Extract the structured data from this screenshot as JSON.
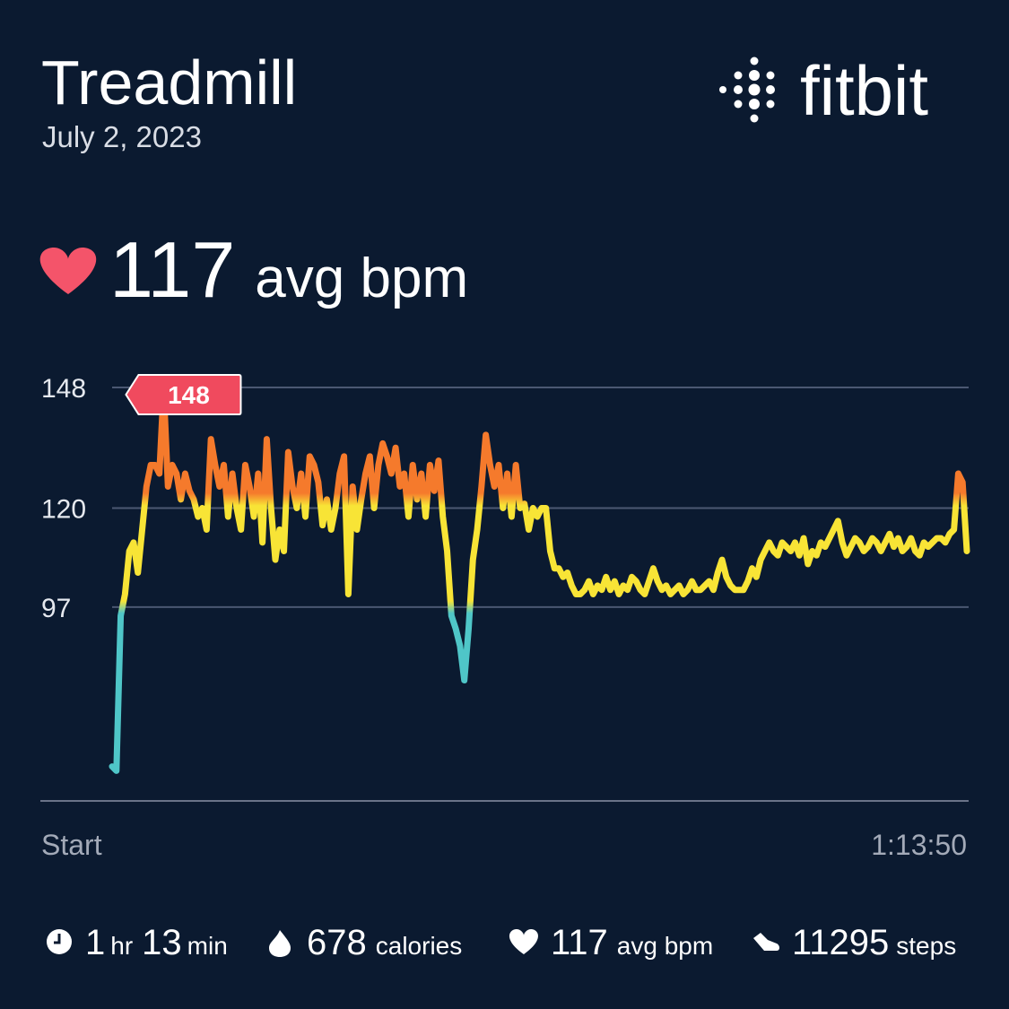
{
  "header": {
    "title": "Treadmill",
    "date": "July 2, 2023",
    "brand": "fitbit"
  },
  "summary": {
    "value": 117,
    "unit": "avg bpm"
  },
  "chart_data": {
    "type": "line",
    "values": [
      60,
      59,
      95,
      100,
      110,
      112,
      105,
      115,
      125,
      130,
      130,
      128,
      148,
      125,
      130,
      128,
      122,
      128,
      124,
      122,
      118,
      120,
      115,
      136,
      130,
      125,
      130,
      118,
      128,
      120,
      115,
      130,
      125,
      118,
      128,
      112,
      136,
      120,
      108,
      115,
      110,
      133,
      125,
      120,
      128,
      118,
      132,
      130,
      126,
      116,
      122,
      115,
      120,
      128,
      132,
      100,
      125,
      115,
      122,
      128,
      132,
      120,
      130,
      135,
      132,
      128,
      134,
      125,
      128,
      118,
      130,
      122,
      128,
      118,
      130,
      124,
      131,
      118,
      110,
      95,
      92,
      88,
      80,
      92,
      108,
      115,
      125,
      137,
      130,
      125,
      130,
      120,
      128,
      118,
      130,
      120,
      121,
      115,
      120,
      118,
      120,
      120,
      110,
      106,
      106,
      104,
      105,
      102,
      100,
      100,
      101,
      103,
      100,
      102,
      101,
      104,
      101,
      103,
      100,
      102,
      101,
      104,
      103,
      101,
      100,
      103,
      106,
      103,
      101,
      102,
      100,
      101,
      102,
      100,
      101,
      103,
      101,
      101,
      102,
      103,
      101,
      105,
      108,
      104,
      102,
      101,
      101,
      101,
      103,
      106,
      104,
      108,
      110,
      112,
      110,
      109,
      112,
      111,
      110,
      112,
      109,
      113,
      107,
      110,
      109,
      112,
      111,
      113,
      115,
      117,
      112,
      109,
      111,
      113,
      112,
      110,
      111,
      113,
      112,
      110,
      112,
      114,
      111,
      113,
      110,
      111,
      113,
      110,
      109,
      112,
      111,
      112,
      113,
      113,
      112,
      114,
      115,
      128,
      126,
      110
    ],
    "ylim": [
      52,
      148
    ],
    "yticks": [
      148,
      120,
      97
    ],
    "grid": true,
    "x_start_label": "Start",
    "x_end_label": "1:13:50",
    "max_label": 148,
    "zone_breaks": [
      97,
      122
    ],
    "zone_colors": [
      "#4fc6c8",
      "#f8e436",
      "#f57a2c"
    ]
  },
  "stats": {
    "duration": {
      "hours": 1,
      "hours_unit": "hr",
      "minutes": 13,
      "minutes_unit": "min"
    },
    "calories": {
      "value": 678,
      "unit": "calories"
    },
    "heart": {
      "value": 117,
      "unit": "avg bpm"
    },
    "steps": {
      "value": 11295,
      "unit": "steps"
    }
  }
}
